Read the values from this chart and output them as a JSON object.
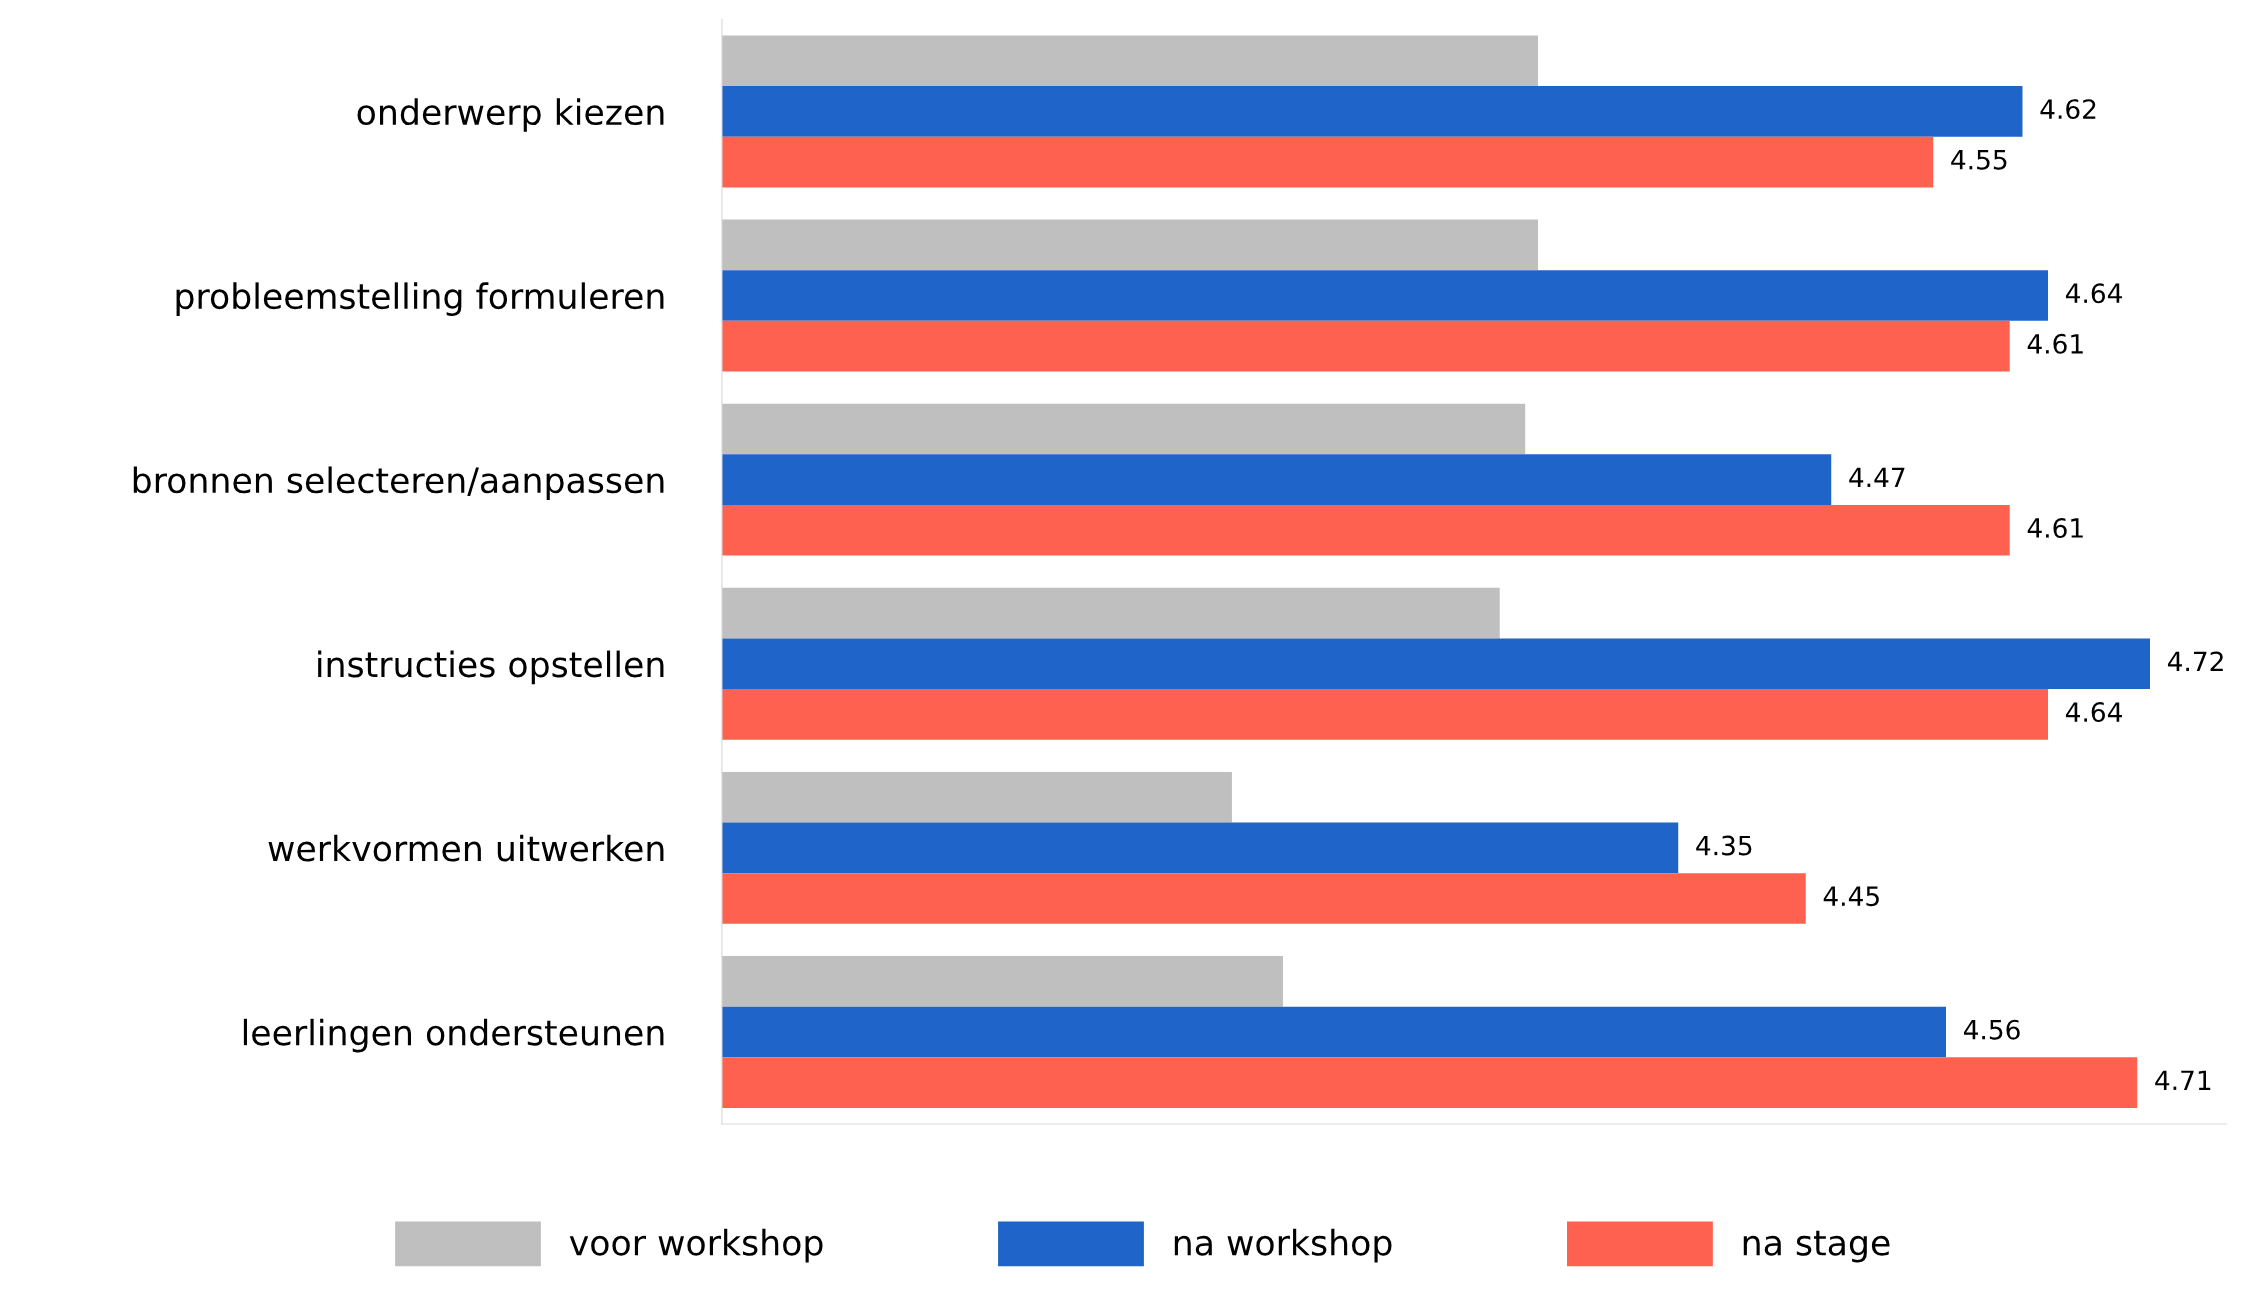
{
  "chart_data": {
    "type": "bar",
    "orientation": "horizontal",
    "categories": [
      "onderwerp kiezen",
      "probleemstelling formuleren",
      "bronnen selecteren/aanpassen",
      "instructies opstellen",
      "werkvormen uitwerken",
      "leerlingen ondersteunen"
    ],
    "series": [
      {
        "name": "voor workshop",
        "color": "#bfbfbf",
        "values": [
          4.24,
          4.24,
          4.23,
          4.21,
          4.0,
          4.04
        ]
      },
      {
        "name": "na workshop",
        "color": "#1f64c8",
        "values": [
          4.62,
          4.64,
          4.47,
          4.72,
          4.35,
          4.56
        ],
        "value_labels": [
          "4.62",
          "4.64",
          "4.47",
          "4.72",
          "4.35",
          "4.56"
        ]
      },
      {
        "name": "na stage",
        "color": "#ff6150",
        "values": [
          4.55,
          4.61,
          4.61,
          4.64,
          4.45,
          4.71
        ],
        "value_labels": [
          "4.55",
          "4.61",
          "4.61",
          "4.64",
          "4.45",
          "4.71"
        ]
      }
    ],
    "xlim": [
      3.6,
      4.78
    ],
    "tick_labels": "y",
    "grid": false,
    "legend": "bottom"
  }
}
